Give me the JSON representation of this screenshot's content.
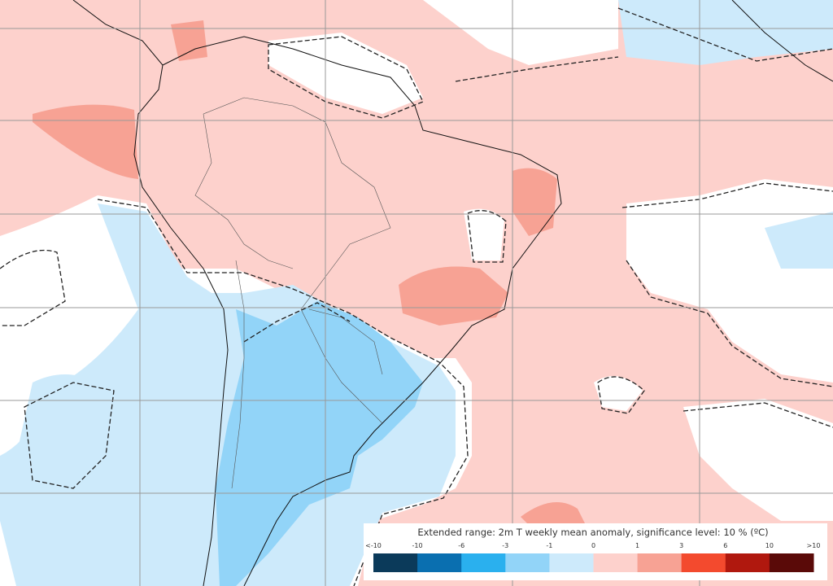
{
  "legend": {
    "title": "Extended range: 2m T weekly mean anomaly, significance level: 10 % (ºC)",
    "labels": [
      "<-10",
      "-10",
      "-6",
      "-3",
      "-1",
      "0",
      "1",
      "3",
      "6",
      "10",
      ">10"
    ],
    "colors": [
      "#0b3a5a",
      "#0a6fb0",
      "#2ab0ee",
      "#92d4f8",
      "#cdeafb",
      "#fdd1cc",
      "#f7a294",
      "#f34a2e",
      "#b0180e",
      "#5a0a08"
    ]
  }
}
